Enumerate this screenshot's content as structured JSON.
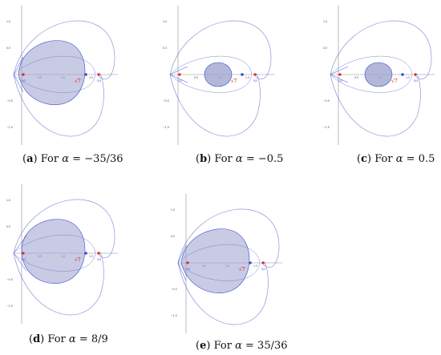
{
  "panels": [
    {
      "letter": "a",
      "prefix": "For",
      "symbol": "α",
      "rel": "=",
      "value": "−35/36",
      "size": "big",
      "shift": -8
    },
    {
      "letter": "b",
      "prefix": "For",
      "symbol": "α",
      "rel": "=",
      "value": "−0.5",
      "size": "small",
      "shift": 0
    },
    {
      "letter": "c",
      "prefix": "For",
      "symbol": "α",
      "rel": "=",
      "value": "0.5",
      "size": "small",
      "shift": 0
    },
    {
      "letter": "d",
      "prefix": "For",
      "symbol": "α",
      "rel": "=",
      "value": "8/9",
      "size": "big",
      "shift": -4
    },
    {
      "letter": "e",
      "prefix": "For",
      "symbol": "α",
      "rel": "=",
      "value": "35/36",
      "size": "big",
      "shift": -10
    }
  ],
  "axis_ticks": {
    "y": [
      "1.0",
      "0.5",
      "−0.5",
      "−1.0"
    ],
    "x": [
      "0.5",
      "1.0",
      "1.5"
    ]
  },
  "point_labels": {
    "left": "1/3",
    "right": "5/3",
    "mid": "1/3",
    "sqrt": "√7"
  },
  "colors": {
    "blue": "#3b4bd1",
    "fill": "#9aa0cc",
    "red": "#e0232a",
    "axis": "#555555",
    "curve": "#7a84d6"
  }
}
